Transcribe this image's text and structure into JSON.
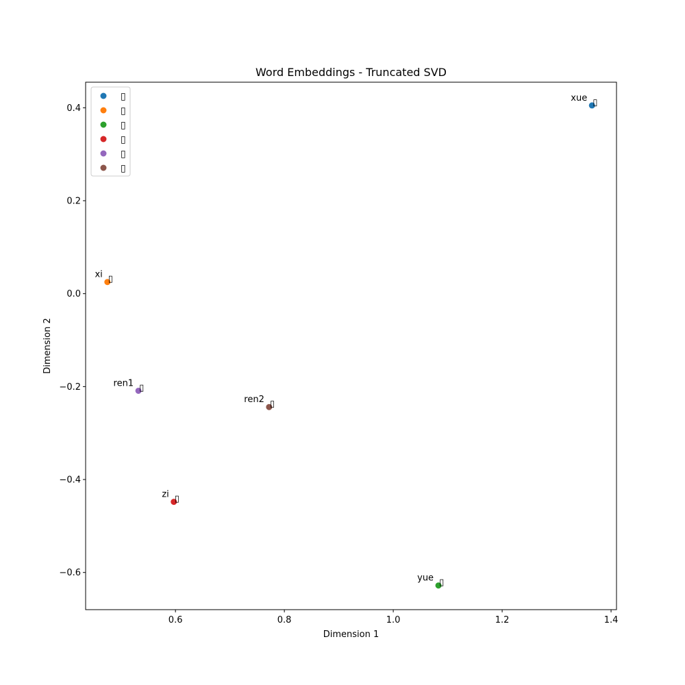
{
  "chart_data": {
    "type": "scatter",
    "title": "Word Embeddings - Truncated SVD",
    "xlabel": "Dimension 1",
    "ylabel": "Dimension 2",
    "xlim": [
      0.435,
      1.41
    ],
    "ylim": [
      -0.68,
      0.455
    ],
    "xticks": [
      0.6,
      0.8,
      1.0,
      1.2,
      1.4
    ],
    "xtick_labels": [
      "0.6",
      "0.8",
      "1.0",
      "1.2",
      "1.4"
    ],
    "yticks": [
      0.4,
      0.2,
      0.0,
      -0.2,
      -0.4,
      -0.6
    ],
    "ytick_labels": [
      "0.4",
      "0.2",
      "0.0",
      "−0.2",
      "−0.4",
      "−0.6"
    ],
    "grid": false,
    "legend_position": "top-left",
    "series": [
      {
        "name": "▯",
        "color": "#1f77b4",
        "x": 1.365,
        "y": 0.405,
        "label": "xue",
        "glyph": "▯"
      },
      {
        "name": "▯",
        "color": "#ff7f0e",
        "x": 0.475,
        "y": 0.025,
        "label": "xi",
        "glyph": "▯"
      },
      {
        "name": "▯",
        "color": "#2ca02c",
        "x": 1.083,
        "y": -0.628,
        "label": "yue",
        "glyph": "▯"
      },
      {
        "name": "▯",
        "color": "#d62728",
        "x": 0.597,
        "y": -0.448,
        "label": "zi",
        "glyph": "▯"
      },
      {
        "name": "▯",
        "color": "#9467bd",
        "x": 0.532,
        "y": -0.209,
        "label": "ren1",
        "glyph": "▯"
      },
      {
        "name": "▯",
        "color": "#8c564b",
        "x": 0.772,
        "y": -0.244,
        "label": "ren2",
        "glyph": "▯"
      }
    ]
  }
}
